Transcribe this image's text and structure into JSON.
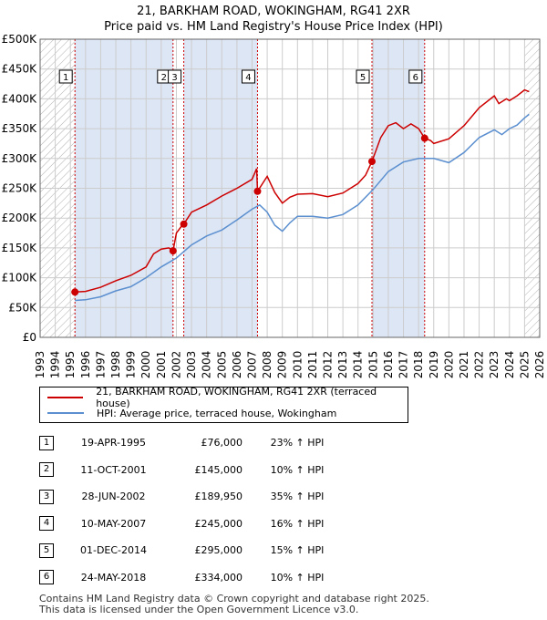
{
  "header": {
    "title_line1": "21, BARKHAM ROAD, WOKINGHAM, RG41 2XR",
    "title_line2": "Price paid vs. HM Land Registry's House Price Index (HPI)"
  },
  "colors": {
    "price_line": "#cc0000",
    "hpi_line": "#5b8fcf",
    "shade": "#dde6f5",
    "grid": "#cccccc",
    "hatch": "#b0b0b0",
    "vline": "#cc0000"
  },
  "chart_data": {
    "type": "line",
    "title": "21, BARKHAM ROAD, WOKINGHAM, RG41 2XR — Price paid vs. HM Land Registry's House Price Index (HPI)",
    "xlim": [
      1993,
      2026
    ],
    "ylim": [
      0,
      500000
    ],
    "x_ticks": [
      1993,
      1994,
      1995,
      1996,
      1997,
      1998,
      1999,
      2000,
      2001,
      2002,
      2003,
      2004,
      2005,
      2006,
      2007,
      2008,
      2009,
      2010,
      2011,
      2012,
      2013,
      2014,
      2015,
      2016,
      2017,
      2018,
      2019,
      2020,
      2021,
      2022,
      2023,
      2024,
      2025,
      2026
    ],
    "y_ticks": [
      0,
      50000,
      100000,
      150000,
      200000,
      250000,
      300000,
      350000,
      400000,
      450000,
      500000
    ],
    "y_tick_labels": [
      "£0",
      "£50K",
      "£100K",
      "£150K",
      "£200K",
      "£250K",
      "£300K",
      "£350K",
      "£400K",
      "£450K",
      "£500K"
    ],
    "hatched_ranges": [
      [
        1993,
        1995.3
      ],
      [
        2025.0,
        2026
      ]
    ],
    "shaded_ranges": [
      [
        1995.3,
        2001.78
      ],
      [
        2002.49,
        2007.36
      ],
      [
        2014.92,
        2018.4
      ]
    ],
    "series": [
      {
        "name": "21, BARKHAM ROAD, WOKINGHAM, RG41 2XR (terraced house)",
        "x": [
          1995.3,
          1996,
          1997,
          1998,
          1999,
          2000,
          2000.5,
          2001,
          2001.5,
          2001.78,
          2002,
          2002.3,
          2002.49,
          2003,
          2004,
          2005,
          2006,
          2007,
          2007.3,
          2007.36,
          2008,
          2008.5,
          2009,
          2009.5,
          2010,
          2011,
          2012,
          2013,
          2014,
          2014.5,
          2014.92,
          2015.5,
          2016,
          2016.5,
          2017,
          2017.5,
          2018,
          2018.4,
          2018.8,
          2019,
          2020,
          2021,
          2022,
          2023,
          2023.3,
          2023.8,
          2024,
          2024.5,
          2025,
          2025.3
        ],
        "y": [
          76000,
          77000,
          84000,
          95000,
          104000,
          118000,
          140000,
          148000,
          150000,
          145000,
          175000,
          185000,
          189950,
          210000,
          222000,
          237000,
          250000,
          265000,
          283000,
          245000,
          270000,
          243000,
          225000,
          235000,
          240000,
          241000,
          236000,
          242000,
          258000,
          272000,
          295000,
          335000,
          355000,
          360000,
          350000,
          358000,
          350000,
          334000,
          330000,
          325000,
          333000,
          355000,
          385000,
          405000,
          392000,
          400000,
          397000,
          405000,
          415000,
          412000
        ]
      },
      {
        "name": "HPI: Average price, terraced house, Wokingham",
        "x": [
          1995.3,
          1996,
          1997,
          1998,
          1999,
          2000,
          2001,
          2002,
          2003,
          2004,
          2005,
          2006,
          2007,
          2007.5,
          2008,
          2008.5,
          2009,
          2009.5,
          2010,
          2011,
          2012,
          2013,
          2014,
          2015,
          2016,
          2017,
          2018,
          2019,
          2020,
          2021,
          2022,
          2023,
          2023.5,
          2024,
          2024.5,
          2025,
          2025.3
        ],
        "y": [
          62000,
          63000,
          68000,
          78000,
          85000,
          100000,
          118000,
          133000,
          155000,
          170000,
          180000,
          197000,
          215000,
          222000,
          210000,
          188000,
          178000,
          192000,
          203000,
          203000,
          200000,
          206000,
          222000,
          248000,
          278000,
          294000,
          300000,
          300000,
          293000,
          310000,
          335000,
          348000,
          340000,
          350000,
          356000,
          368000,
          374000
        ]
      }
    ],
    "sales": [
      {
        "n": "1",
        "x": 1995.3,
        "y": 76000
      },
      {
        "n": "2",
        "x": 2001.78,
        "y": 145000
      },
      {
        "n": "3",
        "x": 2002.49,
        "y": 189950
      },
      {
        "n": "4",
        "x": 2007.36,
        "y": 245000
      },
      {
        "n": "5",
        "x": 2014.92,
        "y": 295000
      },
      {
        "n": "6",
        "x": 2018.4,
        "y": 334000
      }
    ]
  },
  "legend": {
    "price_label": "21, BARKHAM ROAD, WOKINGHAM, RG41 2XR (terraced house)",
    "hpi_label": "HPI: Average price, terraced house, Wokingham"
  },
  "sales_table": [
    {
      "num": "1",
      "date": "19-APR-1995",
      "price": "£76,000",
      "hpi": "23% ↑ HPI"
    },
    {
      "num": "2",
      "date": "11-OCT-2001",
      "price": "£145,000",
      "hpi": "10% ↑ HPI"
    },
    {
      "num": "3",
      "date": "28-JUN-2002",
      "price": "£189,950",
      "hpi": "35% ↑ HPI"
    },
    {
      "num": "4",
      "date": "10-MAY-2007",
      "price": "£245,000",
      "hpi": "16% ↑ HPI"
    },
    {
      "num": "5",
      "date": "01-DEC-2014",
      "price": "£295,000",
      "hpi": "15% ↑ HPI"
    },
    {
      "num": "6",
      "date": "24-MAY-2018",
      "price": "£334,000",
      "hpi": "10% ↑ HPI"
    }
  ],
  "footer": {
    "line1": "Contains HM Land Registry data © Crown copyright and database right 2025.",
    "line2": "This data is licensed under the Open Government Licence v3.0."
  }
}
